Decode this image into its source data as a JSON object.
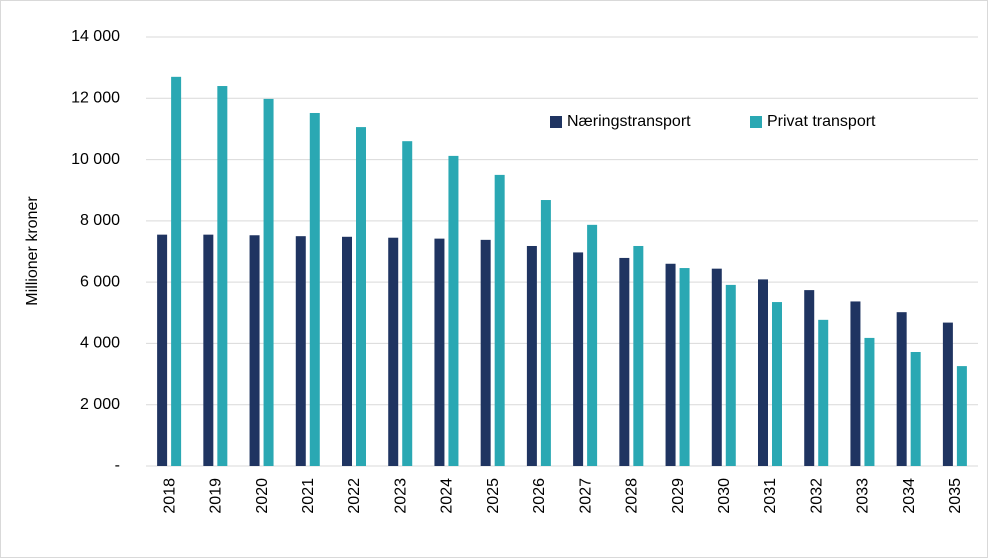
{
  "chart_data": {
    "type": "bar",
    "y_label": "Millioner kroner",
    "categories": [
      "2018",
      "2019",
      "2020",
      "2021",
      "2022",
      "2023",
      "2024",
      "2025",
      "2026",
      "2027",
      "2028",
      "2029",
      "2030",
      "2031",
      "2032",
      "2033",
      "2034",
      "2035"
    ],
    "series": [
      {
        "name": "Næringstransport",
        "color": "#1f3461",
        "values": [
          7550,
          7550,
          7530,
          7500,
          7480,
          7450,
          7420,
          7380,
          7180,
          6970,
          6790,
          6600,
          6440,
          6090,
          5740,
          5370,
          5020,
          4680
        ]
      },
      {
        "name": "Privat transport",
        "color": "#2aa8b3",
        "values": [
          12700,
          12400,
          11980,
          11520,
          11060,
          10600,
          10120,
          9500,
          8680,
          7870,
          7180,
          6460,
          5910,
          5350,
          4770,
          4180,
          3720,
          3260
        ]
      }
    ],
    "ylim": [
      0,
      14000
    ],
    "yticks": [
      {
        "value": 0,
        "label": "-"
      },
      {
        "value": 2000,
        "label": "2 000"
      },
      {
        "value": 4000,
        "label": "4 000"
      },
      {
        "value": 6000,
        "label": "6 000"
      },
      {
        "value": 8000,
        "label": "8 000"
      },
      {
        "value": 10000,
        "label": "10 000"
      },
      {
        "value": 12000,
        "label": "12 000"
      },
      {
        "value": 14000,
        "label": "14 000"
      }
    ],
    "grid": true,
    "legend": "upper right"
  }
}
